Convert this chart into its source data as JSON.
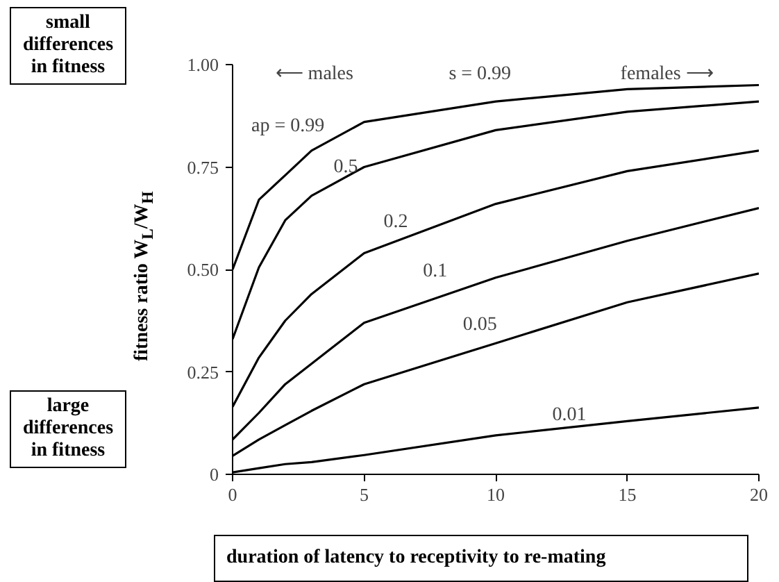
{
  "chart_data": {
    "type": "line",
    "xlabel": "duration of latency to receptivity to re-mating",
    "ylabel": "fitness ratio W$_{L}$/W$_{H}$",
    "x": [
      0,
      1,
      2,
      3,
      5,
      10,
      15,
      20
    ],
    "series": [
      {
        "color": "#000000",
        "values": [
          0.5,
          0.67,
          0.73,
          0.79,
          0.86,
          0.91,
          0.94,
          0.95
        ]
      },
      {
        "color": "#000000",
        "values": [
          0.33,
          0.505,
          0.62,
          0.68,
          0.75,
          0.84,
          0.885,
          0.91
        ]
      },
      {
        "color": "#000000",
        "values": [
          0.165,
          0.285,
          0.375,
          0.44,
          0.54,
          0.66,
          0.74,
          0.79
        ]
      },
      {
        "color": "#000000",
        "values": [
          0.085,
          0.15,
          0.22,
          0.27,
          0.37,
          0.48,
          0.57,
          0.65
        ]
      },
      {
        "color": "#000000",
        "values": [
          0.045,
          0.085,
          0.12,
          0.155,
          0.22,
          0.32,
          0.42,
          0.49
        ]
      },
      {
        "color": "#000000",
        "values": [
          0.005,
          0.015,
          0.025,
          0.03,
          0.047,
          0.095,
          0.13,
          0.163
        ]
      }
    ],
    "annotations": [
      "small\ndifferences\nin fitness",
      "large\ndifferences\nin fitness",
      "⟵  males",
      "s = 0.99",
      "females  ⟶",
      "ap = 0.99",
      "0.5",
      "0.2",
      "0.1",
      "0.05",
      "0.01"
    ],
    "xlim": [
      0,
      20
    ],
    "xticks": [
      0,
      5,
      10,
      15,
      20
    ],
    "ylim": [
      0,
      1
    ],
    "yticks": [
      0,
      {
        "value": 0.25,
        "label": "0.25"
      },
      {
        "value": 0.5,
        "label": "0.50"
      },
      {
        "value": 0.75,
        "label": "0.75"
      },
      {
        "value": 1,
        "label": "1.00"
      }
    ],
    "grid": false,
    "line_style": "solid"
  }
}
